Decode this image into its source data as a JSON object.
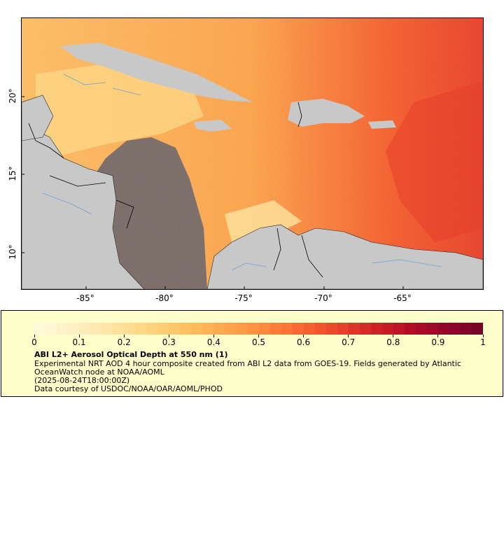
{
  "map": {
    "lat_labels": [
      "20°",
      "15°",
      "10°"
    ],
    "lon_labels": [
      "-85°",
      "-80°",
      "-75°",
      "-70°",
      "-65°"
    ],
    "colors": {
      "land": "#c8c8c8",
      "ocean_nodata": "#6e6e6e",
      "border": "#000000",
      "river": "#6fa0d8"
    }
  },
  "legend": {
    "ticks": [
      "0",
      "0.1",
      "0.2",
      "0.3",
      "0.4",
      "0.5",
      "0.6",
      "0.7",
      "0.8",
      "0.9",
      "1"
    ],
    "colormap": [
      "#fff9d9",
      "#fff0c4",
      "#ffe5a6",
      "#ffd988",
      "#fec86a",
      "#feb354",
      "#fd9c45",
      "#fc7f39",
      "#f5602f",
      "#e6402a",
      "#cf2026",
      "#b30d26",
      "#93062b",
      "#760427"
    ],
    "title": "ABI L2+ Aerosol Optical Depth at 550 nm (1)",
    "line1": "Experimental NRT AOD 4 hour composite created from ABI L2 data from GOES-19. Fields generated by Atlantic OceanWatch node at NOAA/AOML",
    "line2": "(2025-08-24T18:00:00Z)",
    "line3": "Data courtesy of USDOC/NOAA/OAR/AOML/PHOD"
  }
}
